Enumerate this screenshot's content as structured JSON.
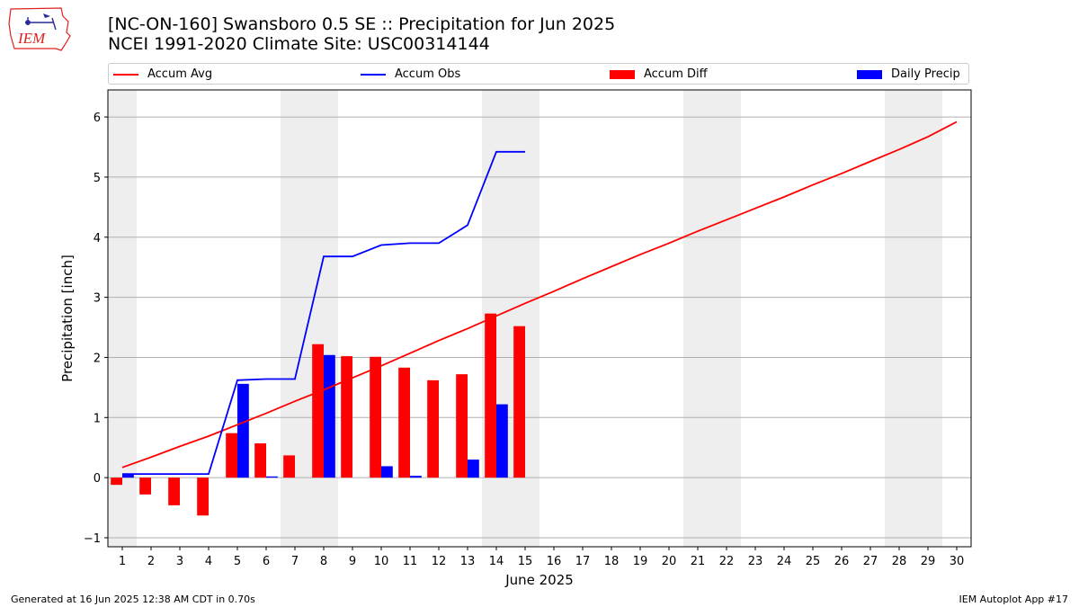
{
  "logo_text": "IEM",
  "title_line1": "[NC-ON-160] Swansboro 0.5 SE :: Precipitation for Jun 2025",
  "title_line2": "NCEI 1991-2020 Climate Site: USC00314144",
  "footer_left": "Generated at 16 Jun 2025 12:38 AM CDT in 0.70s",
  "footer_right": "IEM Autoplot App #17",
  "colors": {
    "avg": "#ff0000",
    "obs": "#0000ff",
    "diff": "#ff0000",
    "daily": "#0000ff",
    "weekend_shade": "#eeeeee",
    "grid": "#b0b0b0"
  },
  "legend": [
    {
      "label": "Accum Avg",
      "kind": "line",
      "color": "#ff0000"
    },
    {
      "label": "Accum Obs",
      "kind": "line",
      "color": "#0000ff"
    },
    {
      "label": "Accum Diff",
      "kind": "bar",
      "color": "#ff0000"
    },
    {
      "label": "Daily Precip",
      "kind": "bar",
      "color": "#0000ff"
    }
  ],
  "chart_data": {
    "type": "bar",
    "xlabel": "June 2025",
    "ylabel": "Precipitation [inch]",
    "xlim": [
      0.5,
      30.5
    ],
    "ylim": [
      -1.15,
      6.45
    ],
    "yticks": [
      -1,
      0,
      1,
      2,
      3,
      4,
      5,
      6
    ],
    "grid": "horizontal",
    "legend_position": "top",
    "x": [
      1,
      2,
      3,
      4,
      5,
      6,
      7,
      8,
      9,
      10,
      11,
      12,
      13,
      14,
      15,
      16,
      17,
      18,
      19,
      20,
      21,
      22,
      23,
      24,
      25,
      26,
      27,
      28,
      29,
      30
    ],
    "weekend_days": [
      1,
      7,
      8,
      14,
      15,
      21,
      22,
      28,
      29
    ],
    "series": [
      {
        "name": "Accum Avg",
        "kind": "line",
        "x": [
          1,
          2,
          3,
          4,
          5,
          6,
          7,
          8,
          9,
          10,
          11,
          12,
          13,
          14,
          15,
          16,
          17,
          18,
          19,
          20,
          21,
          22,
          23,
          24,
          25,
          26,
          27,
          28,
          29,
          30
        ],
        "values": [
          0.17,
          0.34,
          0.52,
          0.69,
          0.88,
          1.07,
          1.27,
          1.46,
          1.66,
          1.86,
          2.07,
          2.28,
          2.48,
          2.69,
          2.9,
          3.1,
          3.31,
          3.51,
          3.71,
          3.9,
          4.1,
          4.29,
          4.48,
          4.67,
          4.87,
          5.06,
          5.26,
          5.46,
          5.67,
          5.92
        ]
      },
      {
        "name": "Accum Obs",
        "kind": "line",
        "x": [
          1,
          2,
          3,
          4,
          5,
          6,
          7,
          8,
          9,
          10,
          11,
          12,
          13,
          14,
          15
        ],
        "values": [
          0.06,
          0.06,
          0.06,
          0.06,
          1.62,
          1.64,
          1.64,
          3.68,
          3.68,
          3.87,
          3.9,
          3.9,
          4.2,
          5.42,
          5.42
        ]
      },
      {
        "name": "Accum Diff",
        "kind": "bar",
        "x": [
          1,
          2,
          3,
          4,
          5,
          6,
          7,
          8,
          9,
          10,
          11,
          12,
          13,
          14,
          15
        ],
        "values": [
          -0.12,
          -0.28,
          -0.46,
          -0.63,
          0.74,
          0.57,
          0.37,
          2.22,
          2.02,
          2.01,
          1.83,
          1.62,
          1.72,
          2.73,
          2.52
        ]
      },
      {
        "name": "Daily Precip",
        "kind": "bar",
        "x": [
          1,
          2,
          3,
          4,
          5,
          6,
          7,
          8,
          9,
          10,
          11,
          12,
          13,
          14,
          15
        ],
        "values": [
          0.06,
          0.0,
          0.0,
          0.0,
          1.56,
          0.02,
          0.0,
          2.04,
          0.0,
          0.19,
          0.03,
          0.0,
          0.3,
          1.22,
          0.0
        ]
      }
    ]
  }
}
